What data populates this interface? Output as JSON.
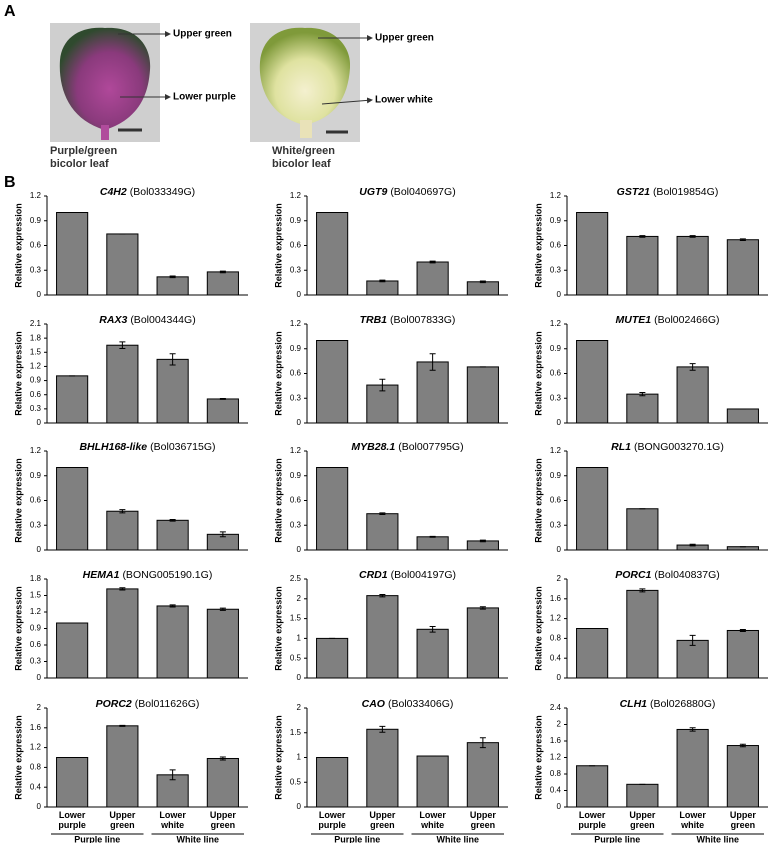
{
  "panel_a": {
    "label": "A",
    "photos": [
      {
        "annotations": [
          "Upper green",
          "Lower purple"
        ],
        "caption": [
          "Purple/green",
          "bicolor leaf"
        ]
      },
      {
        "annotations": [
          "Upper green",
          "Lower white"
        ],
        "caption": [
          "White/green",
          "bicolor leaf"
        ]
      }
    ]
  },
  "panel_b": {
    "label": "B"
  },
  "chart_data": [
    {
      "type": "bar",
      "title": "C4H2",
      "subtitle": "(Bol033349G)",
      "y_label": "Relative expression",
      "categories": [
        null,
        null,
        null,
        null
      ],
      "values": [
        1.0,
        0.74,
        0.22,
        0.28
      ],
      "errors": [
        0,
        0,
        0.01,
        0.01
      ],
      "color": "#808080",
      "ylim": [
        0,
        1.2
      ],
      "yticks": [
        0,
        0.3,
        0.6,
        0.9,
        1.2
      ]
    },
    {
      "type": "bar",
      "title": "UGT9",
      "subtitle": "(Bol040697G)",
      "y_label": "Relative expression",
      "categories": [
        null,
        null,
        null,
        null
      ],
      "values": [
        1.0,
        0.17,
        0.4,
        0.16
      ],
      "errors": [
        0,
        0.01,
        0.01,
        0.01
      ],
      "color": "#808080",
      "ylim": [
        0,
        1.2
      ],
      "yticks": [
        0,
        0.3,
        0.6,
        0.9,
        1.2
      ]
    },
    {
      "type": "bar",
      "title": "GST21",
      "subtitle": "(Bol019854G)",
      "y_label": "Relative expression",
      "categories": [
        null,
        null,
        null,
        null
      ],
      "values": [
        1.0,
        0.71,
        0.71,
        0.67
      ],
      "errors": [
        0,
        0.01,
        0.01,
        0.01
      ],
      "color": "#808080",
      "ylim": [
        0,
        1.2
      ],
      "yticks": [
        0,
        0.3,
        0.6,
        0.9,
        1.2
      ]
    },
    {
      "type": "bar",
      "title": "RAX3",
      "subtitle": "(Bol004344G)",
      "y_label": "Relative expression",
      "categories": [
        null,
        null,
        null,
        null
      ],
      "values": [
        1.0,
        1.65,
        1.35,
        0.51
      ],
      "errors": [
        0,
        0.07,
        0.12,
        0.01
      ],
      "color": "#808080",
      "ylim": [
        0,
        2.1
      ],
      "yticks": [
        0,
        0.3,
        0.6,
        0.9,
        1.2,
        1.5,
        1.8,
        2.1
      ]
    },
    {
      "type": "bar",
      "title": "TRB1",
      "subtitle": "(Bol007833G)",
      "y_label": "Relative expression",
      "categories": [
        null,
        null,
        null,
        null
      ],
      "values": [
        1.0,
        0.46,
        0.74,
        0.68
      ],
      "errors": [
        0,
        0.07,
        0.1,
        0
      ],
      "color": "#808080",
      "ylim": [
        0,
        1.2
      ],
      "yticks": [
        0,
        0.3,
        0.6,
        0.9,
        1.2
      ]
    },
    {
      "type": "bar",
      "title": "MUTE1",
      "subtitle": "(Bol002466G)",
      "y_label": "Relative expression",
      "categories": [
        null,
        null,
        null,
        null
      ],
      "values": [
        1.0,
        0.35,
        0.68,
        0.17
      ],
      "errors": [
        0,
        0.02,
        0.04,
        0
      ],
      "color": "#808080",
      "ylim": [
        0,
        1.2
      ],
      "yticks": [
        0,
        0.3,
        0.6,
        0.9,
        1.2
      ]
    },
    {
      "type": "bar",
      "title": "BHLH168-like",
      "subtitle": "(Bol036715G)",
      "y_label": "Relative expression",
      "categories": [
        null,
        null,
        null,
        null
      ],
      "values": [
        1.0,
        0.47,
        0.36,
        0.19
      ],
      "errors": [
        0,
        0.02,
        0.01,
        0.03
      ],
      "color": "#808080",
      "ylim": [
        0,
        1.2
      ],
      "yticks": [
        0,
        0.3,
        0.6,
        0.9,
        1.2
      ]
    },
    {
      "type": "bar",
      "title": "MYB28.1",
      "subtitle": "(Bol007795G)",
      "y_label": "Relative expression",
      "categories": [
        null,
        null,
        null,
        null
      ],
      "values": [
        1.0,
        0.44,
        0.16,
        0.11
      ],
      "errors": [
        0,
        0.01,
        0.005,
        0.01
      ],
      "color": "#808080",
      "ylim": [
        0,
        1.2
      ],
      "yticks": [
        0,
        0.3,
        0.6,
        0.9,
        1.2
      ]
    },
    {
      "type": "bar",
      "title": "RL1",
      "subtitle": "(BONG003270.1G)",
      "y_label": "Relative expression",
      "categories": [
        null,
        null,
        null,
        null
      ],
      "values": [
        1.0,
        0.5,
        0.06,
        0.04
      ],
      "errors": [
        0,
        0,
        0.01,
        0
      ],
      "color": "#808080",
      "ylim": [
        0,
        1.2
      ],
      "yticks": [
        0,
        0.3,
        0.6,
        0.9,
        1.2
      ]
    },
    {
      "type": "bar",
      "title": "HEMA1",
      "subtitle": "(BONG005190.1G)",
      "y_label": "Relative expression",
      "categories": [
        null,
        null,
        null,
        null
      ],
      "values": [
        1.0,
        1.62,
        1.31,
        1.25
      ],
      "errors": [
        0,
        0.02,
        0.02,
        0.02
      ],
      "color": "#808080",
      "ylim": [
        0,
        1.8
      ],
      "yticks": [
        0,
        0.3,
        0.6,
        0.9,
        1.2,
        1.5,
        1.8
      ]
    },
    {
      "type": "bar",
      "title": "CRD1",
      "subtitle": "(Bol004197G)",
      "y_label": "Relative expression",
      "categories": [
        null,
        null,
        null,
        null
      ],
      "values": [
        1.0,
        2.08,
        1.23,
        1.77
      ],
      "errors": [
        0,
        0.03,
        0.07,
        0.03
      ],
      "color": "#808080",
      "ylim": [
        0,
        2.5
      ],
      "yticks": [
        0,
        0.5,
        1,
        1.5,
        2,
        2.5
      ]
    },
    {
      "type": "bar",
      "title": "PORC1",
      "subtitle": "(Bol040837G)",
      "y_label": "Relative expression",
      "categories": [
        null,
        null,
        null,
        null
      ],
      "values": [
        1.0,
        1.77,
        0.76,
        0.96
      ],
      "errors": [
        0,
        0.03,
        0.1,
        0.02
      ],
      "color": "#808080",
      "ylim": [
        0,
        2
      ],
      "yticks": [
        0,
        0.4,
        0.8,
        1.2,
        1.6,
        2
      ]
    },
    {
      "type": "bar",
      "title": "PORC2",
      "subtitle": "(Bol011626G)",
      "y_label": "Relative expression",
      "categories": [
        "Lower purple",
        "Upper green",
        "Lower white",
        "Upper green"
      ],
      "groups": [
        "Purple line",
        "White line"
      ],
      "values": [
        1.0,
        1.64,
        0.65,
        0.98
      ],
      "errors": [
        0,
        0.01,
        0.1,
        0.03
      ],
      "color": "#808080",
      "ylim": [
        0,
        2
      ],
      "yticks": [
        0,
        0.4,
        0.8,
        1.2,
        1.6,
        2
      ]
    },
    {
      "type": "bar",
      "title": "CAO",
      "subtitle": "(Bol033406G)",
      "y_label": "Relative expression",
      "categories": [
        "Lower purple",
        "Upper green",
        "Lower white",
        "Upper green"
      ],
      "groups": [
        "Purple line",
        "White line"
      ],
      "values": [
        1.0,
        1.57,
        1.03,
        1.3
      ],
      "errors": [
        0,
        0.06,
        0,
        0.1
      ],
      "color": "#808080",
      "ylim": [
        0,
        2
      ],
      "yticks": [
        0,
        0.5,
        1,
        1.5,
        2
      ]
    },
    {
      "type": "bar",
      "title": "CLH1",
      "subtitle": "(Bol026880G)",
      "y_label": "Relative expression",
      "categories": [
        "Lower purple",
        "Upper green",
        "Lower white",
        "Upper green"
      ],
      "groups": [
        "Purple line",
        "White line"
      ],
      "values": [
        1.0,
        0.55,
        1.88,
        1.49
      ],
      "errors": [
        0,
        0,
        0.04,
        0.03
      ],
      "color": "#808080",
      "ylim": [
        0,
        2.4
      ],
      "yticks": [
        0,
        0.4,
        0.8,
        1.2,
        1.6,
        2,
        2.4
      ]
    }
  ]
}
